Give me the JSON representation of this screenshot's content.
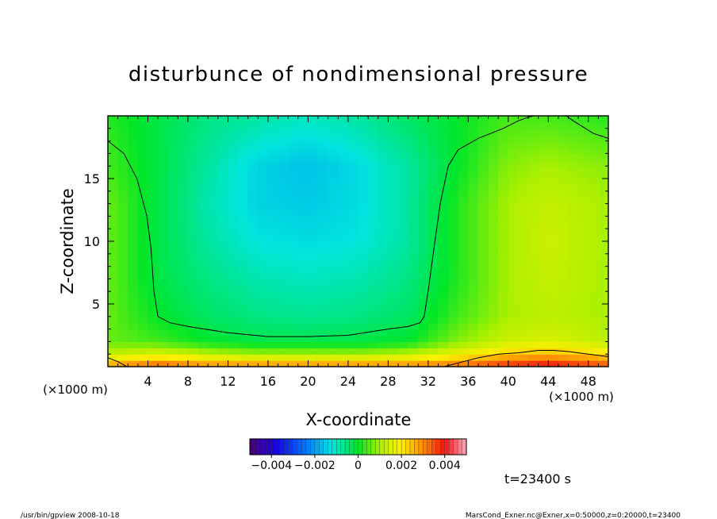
{
  "chart_data": {
    "type": "heatmap",
    "title": "disturbunce of nondimensional pressure",
    "xlabel": "X-coordinate",
    "ylabel": "Z-coordinate",
    "x_unit_left": "(×1000 m)",
    "x_unit_right": "(×1000 m)",
    "xlim": [
      0,
      50
    ],
    "ylim": [
      0,
      20
    ],
    "x_ticks": [
      4,
      8,
      12,
      16,
      20,
      24,
      28,
      32,
      36,
      40,
      44,
      48
    ],
    "x_tick_labels": [
      "4",
      "8",
      "12",
      "16",
      "20",
      "24",
      "28",
      "32",
      "36",
      "40",
      "44",
      "48"
    ],
    "y_ticks": [
      5,
      10,
      15
    ],
    "y_tick_labels": [
      "5",
      "10",
      "15"
    ],
    "grid": false,
    "colorbar": {
      "range": [
        -0.005,
        0.005
      ],
      "ticks": [
        -0.004,
        -0.002,
        0,
        0.002,
        0.004
      ],
      "tick_labels": [
        "−0.004",
        "−0.002",
        "0",
        "0.002",
        "0.004"
      ]
    },
    "field_estimate": {
      "x": [
        0,
        5,
        10,
        15,
        20,
        25,
        30,
        35,
        40,
        44,
        50
      ],
      "z": [
        0,
        1,
        2,
        4,
        7,
        10,
        13,
        16,
        20
      ],
      "values": [
        [
          0.003,
          0.0036,
          0.0032,
          0.0032,
          0.0032,
          0.0032,
          0.0032,
          0.0034,
          0.0039,
          0.0042,
          0.0036
        ],
        [
          0.0012,
          0.0016,
          0.0012,
          0.001,
          0.001,
          0.001,
          0.0012,
          0.0018,
          0.0024,
          0.0026,
          0.0022
        ],
        [
          0.0006,
          0.0004,
          0.0,
          -0.0002,
          -0.0002,
          -0.0002,
          0.0,
          0.0008,
          0.0014,
          0.0016,
          0.0012
        ],
        [
          0.0006,
          0.0,
          -0.0004,
          -0.0006,
          -0.0007,
          -0.0006,
          -0.0004,
          0.0004,
          0.001,
          0.0012,
          0.001
        ],
        [
          0.0006,
          -0.0002,
          -0.0006,
          -0.0009,
          -0.001,
          -0.0009,
          -0.0006,
          0.0002,
          0.001,
          0.0013,
          0.001
        ],
        [
          0.0006,
          -0.0002,
          -0.0008,
          -0.0012,
          -0.0013,
          -0.0012,
          -0.0008,
          0.0002,
          0.001,
          0.0014,
          0.001
        ],
        [
          0.0006,
          -0.0002,
          -0.0009,
          -0.0014,
          -0.0015,
          -0.0013,
          -0.0008,
          0.0002,
          0.001,
          0.0013,
          0.001
        ],
        [
          0.0004,
          -0.0002,
          -0.0008,
          -0.0014,
          -0.0016,
          -0.0013,
          -0.0008,
          0.0,
          0.0008,
          0.001,
          0.0008
        ],
        [
          0.0002,
          -0.0002,
          -0.0006,
          -0.0008,
          -0.001,
          -0.0008,
          -0.0004,
          0.0,
          0.0004,
          0.0004,
          0.0002
        ]
      ]
    },
    "zero_contour": [
      {
        "x": [
          0.0,
          1.6,
          2.9,
          3.9,
          4.3,
          4.6,
          5.0,
          6.2,
          8.0,
          12.0,
          16.0,
          20.0,
          24.0,
          28.0,
          30.0,
          31.2,
          31.6,
          32.0,
          32.5,
          33.2,
          34.0,
          35.0,
          37.0,
          39.5,
          41.0,
          42.0,
          42.6
        ],
        "z": [
          18.0,
          17.0,
          15.0,
          12.0,
          9.5,
          6.0,
          4.0,
          3.5,
          3.2,
          2.7,
          2.4,
          2.4,
          2.5,
          3.0,
          3.2,
          3.5,
          4.0,
          6.0,
          9.0,
          13.0,
          16.0,
          17.3,
          18.2,
          19.0,
          19.6,
          19.9,
          20.0
        ]
      },
      {
        "x": [
          45.8,
          46.5,
          47.5,
          48.5,
          50.0
        ],
        "z": [
          20.0,
          19.6,
          19.1,
          18.6,
          18.2
        ]
      },
      {
        "x": [
          0.0,
          1.0,
          1.9
        ],
        "z": [
          0.7,
          0.4,
          0.0
        ]
      },
      {
        "x": [
          33.6,
          35.0,
          37.0,
          39.0,
          41.0,
          43.0,
          44.5,
          46.0,
          48.0,
          50.0
        ],
        "z": [
          0.0,
          0.3,
          0.7,
          1.0,
          1.1,
          1.3,
          1.3,
          1.2,
          1.0,
          0.8
        ]
      }
    ]
  },
  "time_label": "t=23400 s",
  "footer": {
    "left": "/usr/bin/gpview  2008-10-18",
    "right": "MarsCond_Exner.nc@Exner,x=0:50000,z=0:20000,t=23400"
  }
}
